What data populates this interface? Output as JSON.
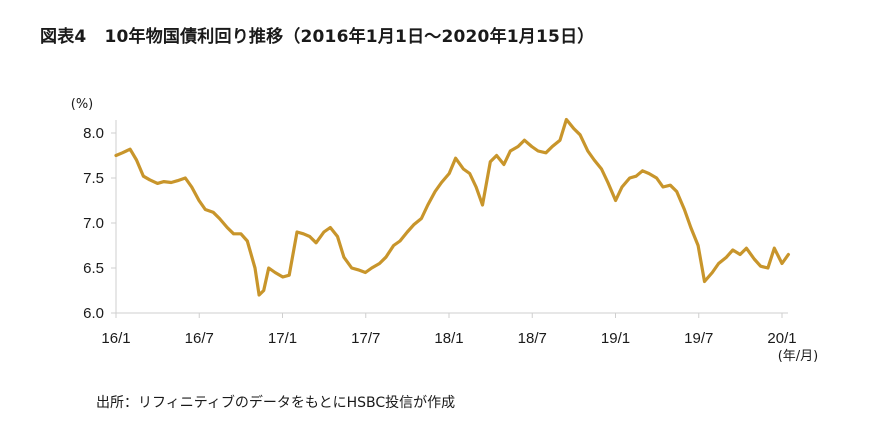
{
  "figure": {
    "title_number": "図表4",
    "title_text": "10年物国債利回り推移（2016年1月1日～2020年1月15日）",
    "source": "出所：リフィニティブのデータをもとにHSBC投信が作成"
  },
  "chart_data": {
    "type": "line",
    "title": "10年物国債利回り推移（2016年1月1日～2020年1月15日）",
    "y_unit": "(%)",
    "x_unit": "(年/月)",
    "ylim": [
      6.0,
      8.2
    ],
    "yticks": [
      "8.0",
      "7.5",
      "7.0",
      "6.5",
      "6.0"
    ],
    "ytick_values": [
      8.0,
      7.5,
      7.0,
      6.5,
      6.0
    ],
    "xticks": [
      "16/1",
      "16/7",
      "17/1",
      "17/7",
      "18/1",
      "18/7",
      "19/1",
      "19/7",
      "20/1"
    ],
    "line_color": "#C8952B",
    "grid": false,
    "legend": "none",
    "series": [
      {
        "x": [
          "2016-01-01",
          "2016-01-15",
          "2016-02-01",
          "2016-02-15",
          "2016-03-01",
          "2016-03-15",
          "2016-04-01",
          "2016-04-15",
          "2016-05-01",
          "2016-05-15",
          "2016-06-01",
          "2016-06-15",
          "2016-07-01",
          "2016-07-15",
          "2016-08-01",
          "2016-08-15",
          "2016-09-01",
          "2016-09-15",
          "2016-10-01",
          "2016-10-15",
          "2016-11-01",
          "2016-11-10",
          "2016-11-20",
          "2016-12-01",
          "2016-12-15",
          "2017-01-01",
          "2017-01-15",
          "2017-02-01",
          "2017-02-15",
          "2017-03-01",
          "2017-03-15",
          "2017-04-01",
          "2017-04-15",
          "2017-05-01",
          "2017-05-15",
          "2017-06-01",
          "2017-06-15",
          "2017-07-01",
          "2017-07-15",
          "2017-08-01",
          "2017-08-15",
          "2017-09-01",
          "2017-09-15",
          "2017-10-01",
          "2017-10-15",
          "2017-11-01",
          "2017-11-15",
          "2017-12-01",
          "2017-12-15",
          "2018-01-01",
          "2018-01-15",
          "2018-02-01",
          "2018-02-15",
          "2018-03-01",
          "2018-03-15",
          "2018-04-01",
          "2018-04-15",
          "2018-05-01",
          "2018-05-15",
          "2018-06-01",
          "2018-06-15",
          "2018-07-01",
          "2018-07-15",
          "2018-08-01",
          "2018-08-15",
          "2018-09-01",
          "2018-09-15",
          "2018-10-01",
          "2018-10-15",
          "2018-11-01",
          "2018-11-15",
          "2018-12-01",
          "2018-12-15",
          "2019-01-01",
          "2019-01-15",
          "2019-02-01",
          "2019-02-15",
          "2019-03-01",
          "2019-03-15",
          "2019-04-01",
          "2019-04-15",
          "2019-05-01",
          "2019-05-15",
          "2019-06-01",
          "2019-06-15",
          "2019-07-01",
          "2019-07-15",
          "2019-08-01",
          "2019-08-15",
          "2019-09-01",
          "2019-09-15",
          "2019-10-01",
          "2019-10-15",
          "2019-11-01",
          "2019-11-15",
          "2019-12-01",
          "2019-12-15",
          "2020-01-01",
          "2020-01-15"
        ],
        "values": [
          7.75,
          7.78,
          7.82,
          7.7,
          7.52,
          7.48,
          7.44,
          7.46,
          7.45,
          7.47,
          7.5,
          7.4,
          7.25,
          7.15,
          7.12,
          7.05,
          6.95,
          6.88,
          6.88,
          6.8,
          6.5,
          6.2,
          6.25,
          6.5,
          6.45,
          6.4,
          6.42,
          6.9,
          6.88,
          6.85,
          6.78,
          6.9,
          6.95,
          6.85,
          6.62,
          6.5,
          6.48,
          6.45,
          6.5,
          6.55,
          6.62,
          6.75,
          6.8,
          6.9,
          6.98,
          7.05,
          7.2,
          7.35,
          7.45,
          7.55,
          7.72,
          7.6,
          7.55,
          7.4,
          7.2,
          7.68,
          7.75,
          7.65,
          7.8,
          7.85,
          7.92,
          7.85,
          7.8,
          7.78,
          7.85,
          7.92,
          8.15,
          8.05,
          7.98,
          7.8,
          7.7,
          7.6,
          7.45,
          7.25,
          7.4,
          7.5,
          7.52,
          7.58,
          7.55,
          7.5,
          7.4,
          7.42,
          7.35,
          7.15,
          6.95,
          6.75,
          6.35,
          6.45,
          6.55,
          6.62,
          6.7,
          6.65,
          6.72,
          6.6,
          6.52,
          6.5,
          6.72,
          6.55,
          6.65
        ]
      }
    ]
  }
}
